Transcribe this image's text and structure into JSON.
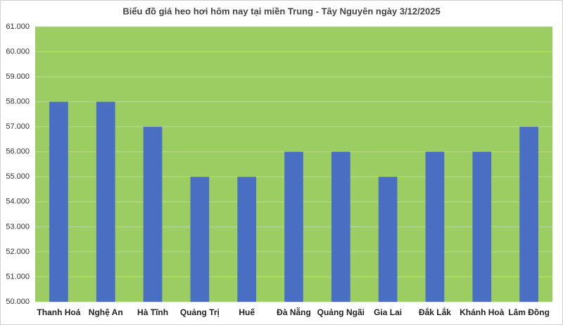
{
  "chart_data": {
    "type": "bar",
    "title": "Biểu đồ giá heo hơi hôm nay tại miền Trung - Tây Nguyên ngày 3/12/2025",
    "categories": [
      "Thanh Hoá",
      "Nghệ An",
      "Hà Tĩnh",
      "Quảng Trị",
      "Huế",
      "Đà Nẵng",
      "Quảng Ngãi",
      "Gia Lai",
      "Đắk Lắk",
      "Khánh Hoà",
      "Lâm Đồng"
    ],
    "values": [
      58000,
      58000,
      57000,
      55000,
      55000,
      56000,
      56000,
      55000,
      56000,
      56000,
      57000
    ],
    "color": "#4a6fc2",
    "plot_background": "#9ccd62",
    "ylim": [
      50000,
      61000
    ],
    "yticks": [
      {
        "value": 50000,
        "label": "50.000"
      },
      {
        "value": 51000,
        "label": "51.000"
      },
      {
        "value": 52000,
        "label": "52.000"
      },
      {
        "value": 53000,
        "label": "53.000"
      },
      {
        "value": 54000,
        "label": "54.000"
      },
      {
        "value": 55000,
        "label": "55.000"
      },
      {
        "value": 56000,
        "label": "56.000"
      },
      {
        "value": 57000,
        "label": "57.000"
      },
      {
        "value": 58000,
        "label": "58.000"
      },
      {
        "value": 59000,
        "label": "59.000"
      },
      {
        "value": 60000,
        "label": "60.000"
      },
      {
        "value": 61000,
        "label": "61.000"
      }
    ],
    "grid": true
  }
}
